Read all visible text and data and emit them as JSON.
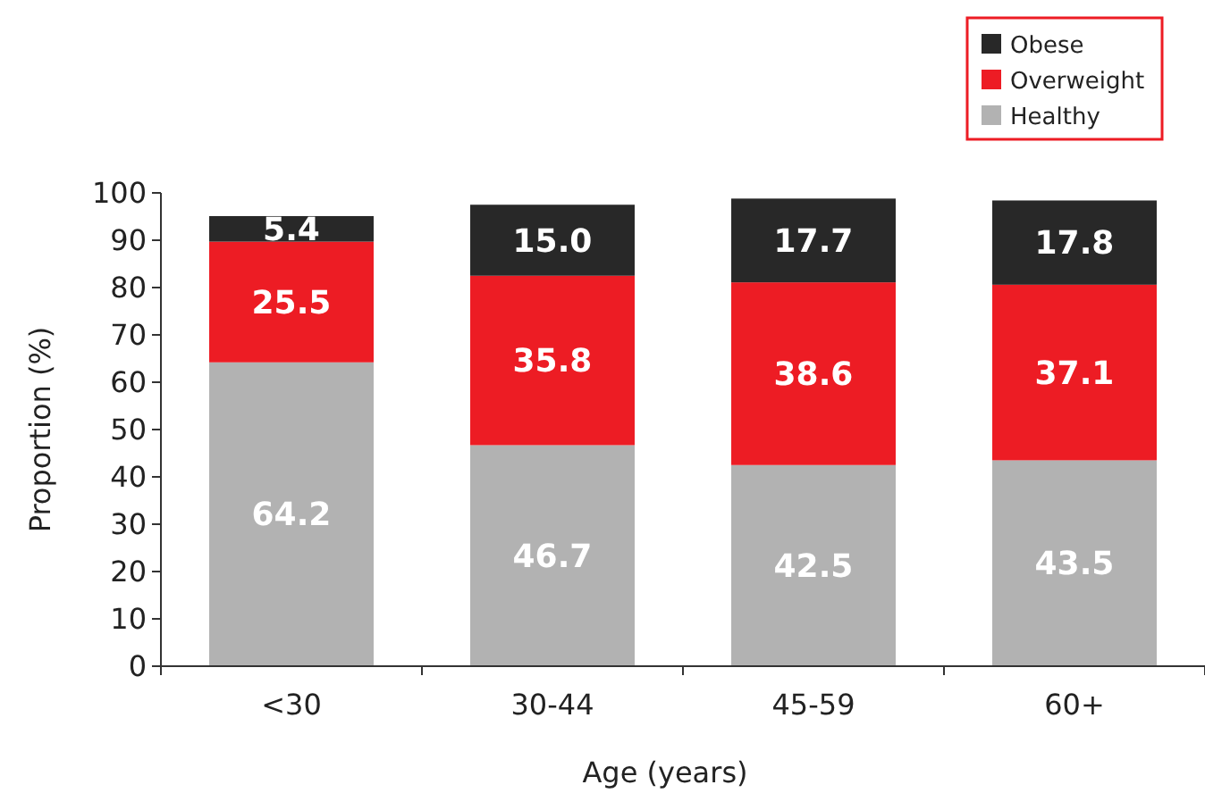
{
  "chart_data": {
    "type": "bar",
    "stacked": true,
    "xlabel": "Age (years)",
    "ylabel": "Proportion (%)",
    "categories": [
      "<30",
      "30-44",
      "45-59",
      "60+"
    ],
    "series": [
      {
        "name": "Healthy",
        "color": "#b2b2b2",
        "values": [
          64.2,
          46.7,
          42.5,
          43.5
        ],
        "value_labels": [
          "64.2",
          "46.7",
          "42.5",
          "43.5"
        ]
      },
      {
        "name": "Overweight",
        "color": "#ed1c24",
        "values": [
          25.5,
          35.8,
          38.6,
          37.1
        ],
        "value_labels": [
          "25.5",
          "35.8",
          "38.6",
          "37.1"
        ]
      },
      {
        "name": "Obese",
        "color": "#282828",
        "values": [
          5.4,
          15.0,
          17.7,
          17.8
        ],
        "value_labels": [
          "5.4",
          "15.0",
          "17.7",
          "17.8"
        ]
      }
    ],
    "ylim": [
      0,
      100
    ],
    "yticks": [
      0,
      10,
      20,
      30,
      40,
      50,
      60,
      70,
      80,
      90,
      100
    ],
    "legend": "top right"
  }
}
